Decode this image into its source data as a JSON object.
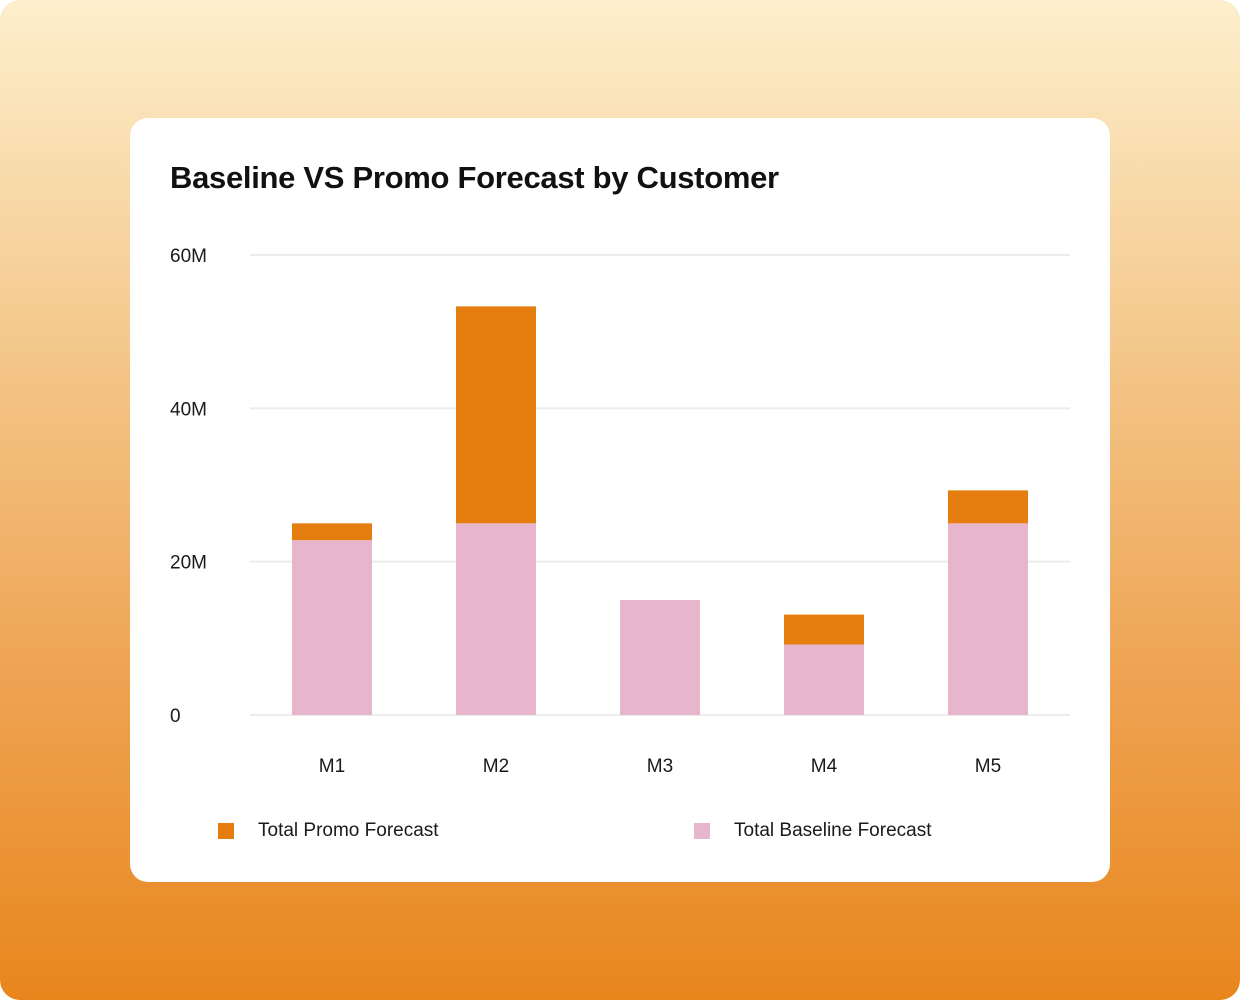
{
  "chart_data": {
    "type": "bar",
    "stacked": true,
    "title": "Baseline VS Promo Forecast by Customer",
    "categories": [
      "M1",
      "M2",
      "M3",
      "M4",
      "M5"
    ],
    "series": [
      {
        "name": "Total Baseline Forecast",
        "color": "#e8b6cc",
        "values": [
          22.8,
          25,
          15,
          9.2,
          25
        ]
      },
      {
        "name": "Total Promo Forecast",
        "color": "#e67e0f",
        "values": [
          2.2,
          28.3,
          0,
          3.9,
          4.3
        ]
      }
    ],
    "yticks": [
      "0",
      "20M",
      "40M",
      "60M"
    ],
    "ytick_values": [
      0,
      20,
      40,
      60
    ],
    "ylim": [
      0,
      60
    ],
    "xlabel": "",
    "ylabel": "",
    "grid": true,
    "legend_position": "bottom"
  },
  "legend": [
    {
      "label": "Total Promo Forecast",
      "color": "#e67e0f"
    },
    {
      "label": "Total Baseline Forecast",
      "color": "#e8b6cc"
    }
  ]
}
